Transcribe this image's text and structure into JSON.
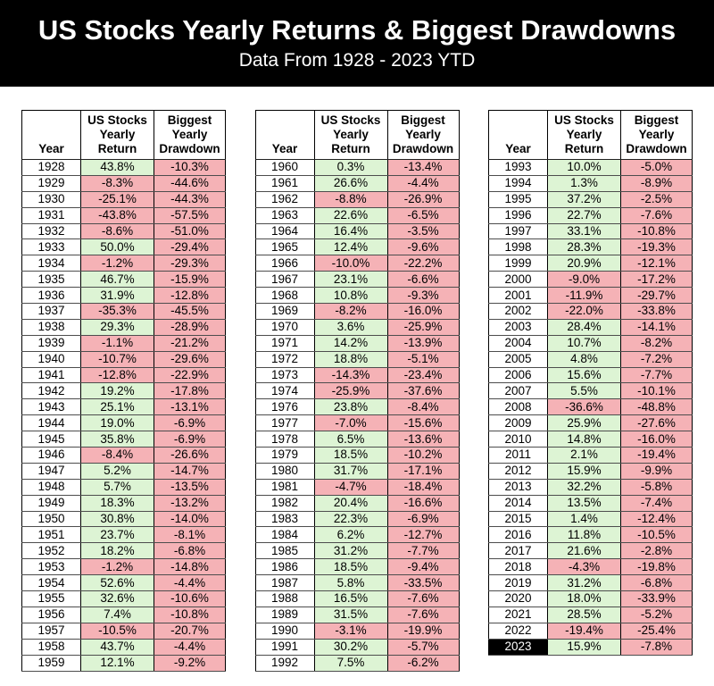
{
  "header": {
    "title": "US Stocks Yearly Returns & Biggest Drawdowns",
    "subtitle": "Data From 1928 - 2023 YTD",
    "bg": "#000000",
    "fg": "#ffffff"
  },
  "chart_data": {
    "type": "table",
    "title": "US Stocks Yearly Returns & Biggest Drawdowns",
    "subtitle": "Data From 1928 - 2023 YTD",
    "columns": [
      "Year",
      "US Stocks\nYearly\nReturn",
      "Biggest\nYearly\nDrawdown"
    ],
    "colors": {
      "positive_bg": "#ddf4d4",
      "negative_bg": "#f5b2b6",
      "highlight_bg": "#000000",
      "highlight_fg": "#ffffff"
    },
    "highlight_year": "2023",
    "tables": [
      {
        "rows": [
          [
            "1928",
            "43.8%",
            "-10.3%"
          ],
          [
            "1929",
            "-8.3%",
            "-44.6%"
          ],
          [
            "1930",
            "-25.1%",
            "-44.3%"
          ],
          [
            "1931",
            "-43.8%",
            "-57.5%"
          ],
          [
            "1932",
            "-8.6%",
            "-51.0%"
          ],
          [
            "1933",
            "50.0%",
            "-29.4%"
          ],
          [
            "1934",
            "-1.2%",
            "-29.3%"
          ],
          [
            "1935",
            "46.7%",
            "-15.9%"
          ],
          [
            "1936",
            "31.9%",
            "-12.8%"
          ],
          [
            "1937",
            "-35.3%",
            "-45.5%"
          ],
          [
            "1938",
            "29.3%",
            "-28.9%"
          ],
          [
            "1939",
            "-1.1%",
            "-21.2%"
          ],
          [
            "1940",
            "-10.7%",
            "-29.6%"
          ],
          [
            "1941",
            "-12.8%",
            "-22.9%"
          ],
          [
            "1942",
            "19.2%",
            "-17.8%"
          ],
          [
            "1943",
            "25.1%",
            "-13.1%"
          ],
          [
            "1944",
            "19.0%",
            "-6.9%"
          ],
          [
            "1945",
            "35.8%",
            "-6.9%"
          ],
          [
            "1946",
            "-8.4%",
            "-26.6%"
          ],
          [
            "1947",
            "5.2%",
            "-14.7%"
          ],
          [
            "1948",
            "5.7%",
            "-13.5%"
          ],
          [
            "1949",
            "18.3%",
            "-13.2%"
          ],
          [
            "1950",
            "30.8%",
            "-14.0%"
          ],
          [
            "1951",
            "23.7%",
            "-8.1%"
          ],
          [
            "1952",
            "18.2%",
            "-6.8%"
          ],
          [
            "1953",
            "-1.2%",
            "-14.8%"
          ],
          [
            "1954",
            "52.6%",
            "-4.4%"
          ],
          [
            "1955",
            "32.6%",
            "-10.6%"
          ],
          [
            "1956",
            "7.4%",
            "-10.8%"
          ],
          [
            "1957",
            "-10.5%",
            "-20.7%"
          ],
          [
            "1958",
            "43.7%",
            "-4.4%"
          ],
          [
            "1959",
            "12.1%",
            "-9.2%"
          ]
        ]
      },
      {
        "rows": [
          [
            "1960",
            "0.3%",
            "-13.4%"
          ],
          [
            "1961",
            "26.6%",
            "-4.4%"
          ],
          [
            "1962",
            "-8.8%",
            "-26.9%"
          ],
          [
            "1963",
            "22.6%",
            "-6.5%"
          ],
          [
            "1964",
            "16.4%",
            "-3.5%"
          ],
          [
            "1965",
            "12.4%",
            "-9.6%"
          ],
          [
            "1966",
            "-10.0%",
            "-22.2%"
          ],
          [
            "1967",
            "23.1%",
            "-6.6%"
          ],
          [
            "1968",
            "10.8%",
            "-9.3%"
          ],
          [
            "1969",
            "-8.2%",
            "-16.0%"
          ],
          [
            "1970",
            "3.6%",
            "-25.9%"
          ],
          [
            "1971",
            "14.2%",
            "-13.9%"
          ],
          [
            "1972",
            "18.8%",
            "-5.1%"
          ],
          [
            "1973",
            "-14.3%",
            "-23.4%"
          ],
          [
            "1974",
            "-25.9%",
            "-37.6%"
          ],
          [
            "1976",
            "23.8%",
            "-8.4%"
          ],
          [
            "1977",
            "-7.0%",
            "-15.6%"
          ],
          [
            "1978",
            "6.5%",
            "-13.6%"
          ],
          [
            "1979",
            "18.5%",
            "-10.2%"
          ],
          [
            "1980",
            "31.7%",
            "-17.1%"
          ],
          [
            "1981",
            "-4.7%",
            "-18.4%"
          ],
          [
            "1982",
            "20.4%",
            "-16.6%"
          ],
          [
            "1983",
            "22.3%",
            "-6.9%"
          ],
          [
            "1984",
            "6.2%",
            "-12.7%"
          ],
          [
            "1985",
            "31.2%",
            "-7.7%"
          ],
          [
            "1986",
            "18.5%",
            "-9.4%"
          ],
          [
            "1987",
            "5.8%",
            "-33.5%"
          ],
          [
            "1988",
            "16.5%",
            "-7.6%"
          ],
          [
            "1989",
            "31.5%",
            "-7.6%"
          ],
          [
            "1990",
            "-3.1%",
            "-19.9%"
          ],
          [
            "1991",
            "30.2%",
            "-5.7%"
          ],
          [
            "1992",
            "7.5%",
            "-6.2%"
          ]
        ]
      },
      {
        "rows": [
          [
            "1993",
            "10.0%",
            "-5.0%"
          ],
          [
            "1994",
            "1.3%",
            "-8.9%"
          ],
          [
            "1995",
            "37.2%",
            "-2.5%"
          ],
          [
            "1996",
            "22.7%",
            "-7.6%"
          ],
          [
            "1997",
            "33.1%",
            "-10.8%"
          ],
          [
            "1998",
            "28.3%",
            "-19.3%"
          ],
          [
            "1999",
            "20.9%",
            "-12.1%"
          ],
          [
            "2000",
            "-9.0%",
            "-17.2%"
          ],
          [
            "2001",
            "-11.9%",
            "-29.7%"
          ],
          [
            "2002",
            "-22.0%",
            "-33.8%"
          ],
          [
            "2003",
            "28.4%",
            "-14.1%"
          ],
          [
            "2004",
            "10.7%",
            "-8.2%"
          ],
          [
            "2005",
            "4.8%",
            "-7.2%"
          ],
          [
            "2006",
            "15.6%",
            "-7.7%"
          ],
          [
            "2007",
            "5.5%",
            "-10.1%"
          ],
          [
            "2008",
            "-36.6%",
            "-48.8%"
          ],
          [
            "2009",
            "25.9%",
            "-27.6%"
          ],
          [
            "2010",
            "14.8%",
            "-16.0%"
          ],
          [
            "2011",
            "2.1%",
            "-19.4%"
          ],
          [
            "2012",
            "15.9%",
            "-9.9%"
          ],
          [
            "2013",
            "32.2%",
            "-5.8%"
          ],
          [
            "2014",
            "13.5%",
            "-7.4%"
          ],
          [
            "2015",
            "1.4%",
            "-12.4%"
          ],
          [
            "2016",
            "11.8%",
            "-10.5%"
          ],
          [
            "2017",
            "21.6%",
            "-2.8%"
          ],
          [
            "2018",
            "-4.3%",
            "-19.8%"
          ],
          [
            "2019",
            "31.2%",
            "-6.8%"
          ],
          [
            "2020",
            "18.0%",
            "-33.9%"
          ],
          [
            "2021",
            "28.5%",
            "-5.2%"
          ],
          [
            "2022",
            "-19.4%",
            "-25.4%"
          ],
          [
            "2023",
            "15.9%",
            "-7.8%"
          ]
        ]
      }
    ]
  }
}
